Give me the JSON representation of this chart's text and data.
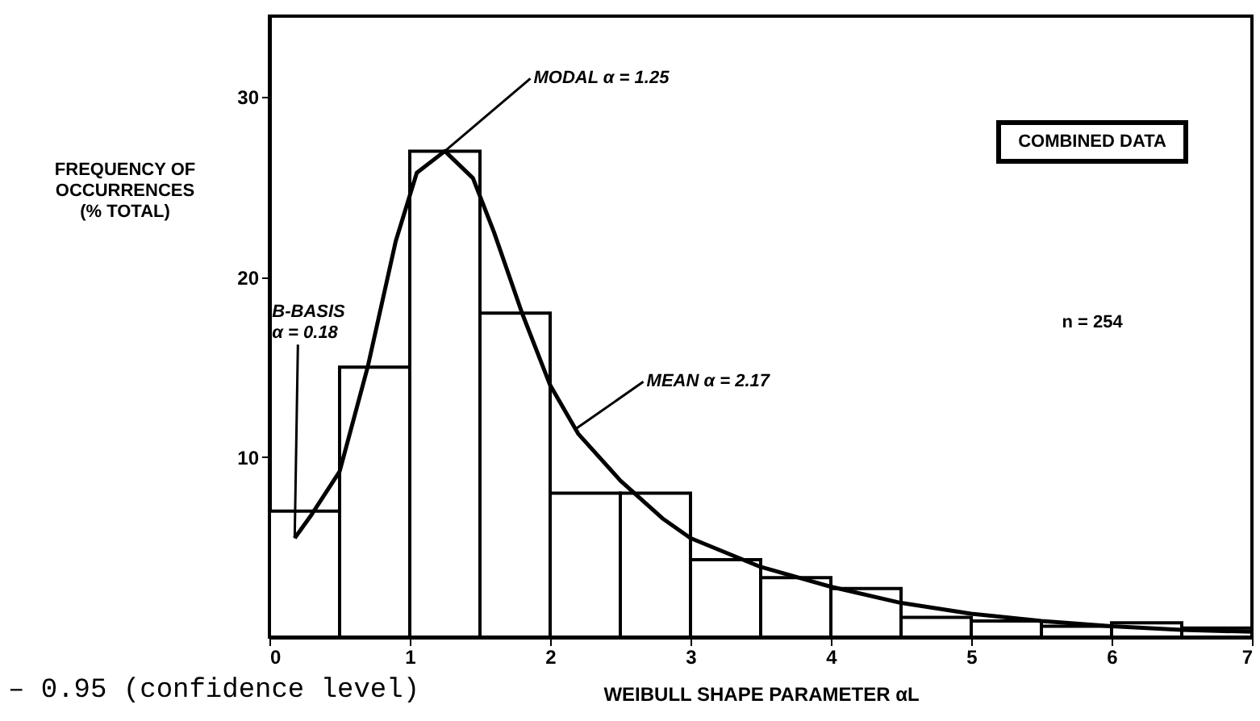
{
  "chart_data": {
    "type": "histogram",
    "xlabel": "WEIBULL SHAPE PARAMETER αL",
    "ylabel": "FREQUENCY OF\nOCCURRENCES\n(% TOTAL)",
    "bins": [
      0,
      0.5,
      1,
      1.5,
      2,
      2.5,
      3,
      3.5,
      4,
      4.5,
      5,
      5.5,
      6,
      6.5,
      7
    ],
    "values": [
      7,
      15,
      27,
      18,
      8,
      8,
      4.3,
      3.3,
      2.7,
      1.1,
      0.9,
      0.6,
      0.8,
      0.5
    ],
    "color": "#ffffff",
    "series": [
      {
        "type": "line",
        "color": "#000000",
        "x": [
          0.18,
          0.3,
          0.5,
          0.7,
          0.9,
          1.05,
          1.25,
          1.45,
          1.6,
          1.8,
          2.0,
          2.2,
          2.5,
          2.8,
          3.0,
          3.5,
          4.0,
          4.5,
          5.0,
          5.5,
          6.0,
          6.5,
          7.0
        ],
        "values": [
          5.5,
          6.8,
          9.2,
          15,
          22,
          25.8,
          27,
          25.5,
          22.5,
          18,
          14,
          11.3,
          8.7,
          6.6,
          5.5,
          3.9,
          2.8,
          1.9,
          1.3,
          0.9,
          0.6,
          0.4,
          0.3
        ]
      }
    ],
    "xlim": [
      0,
      7
    ],
    "ylim": [
      0,
      34.5
    ],
    "xticks": [
      0,
      1,
      2,
      3,
      4,
      5,
      6,
      7
    ],
    "yticks": [
      10,
      20,
      30
    ],
    "grid": false,
    "annotations": [
      {
        "text": "MODAL α = 1.25",
        "x": 1.25,
        "y": 27
      },
      {
        "text": "B-BASIS\nα = 0.18",
        "x": 0.18,
        "y": 5.5
      },
      {
        "text": "MEAN α = 2.17",
        "x": 2.17,
        "y": 11.5
      },
      "COMBINED DATA",
      "n = 254",
      "– 0.95 (confidence level)"
    ]
  }
}
